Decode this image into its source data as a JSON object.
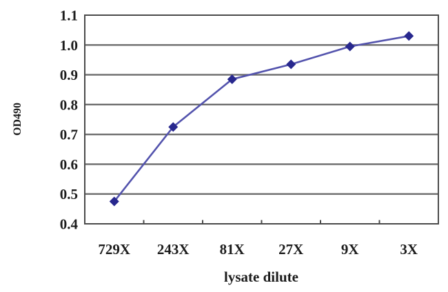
{
  "chart_data": {
    "type": "line",
    "title": "",
    "xlabel": "lysate dilute",
    "ylabel": "OD490",
    "categories": [
      "729X",
      "243X",
      "81X",
      "27X",
      "9X",
      "3X"
    ],
    "series": [
      {
        "name": "OD490",
        "values": [
          0.475,
          0.725,
          0.885,
          0.935,
          0.995,
          1.03
        ]
      }
    ],
    "ylim": [
      0.4,
      1.1
    ],
    "yticks": [
      0.4,
      0.5,
      0.6,
      0.7,
      0.8,
      0.9,
      1.0,
      1.1
    ],
    "ytick_format_decimals": 1,
    "grid": "horizontal",
    "legend": "none",
    "marker": "diamond",
    "colors": {
      "line": "#5353ad",
      "marker": "#28288e",
      "gridline": "#6b6b6b",
      "frame": "#4a4a4a",
      "text": "#1c1c1c",
      "background": "#ffffff"
    }
  }
}
